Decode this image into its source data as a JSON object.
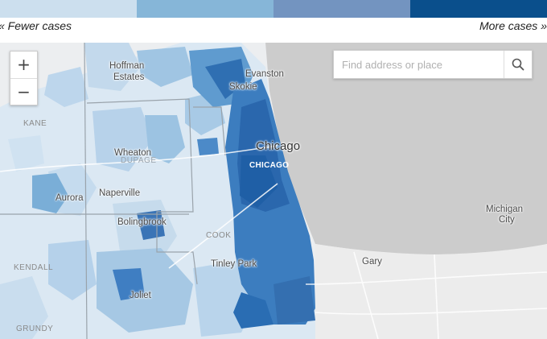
{
  "legend": {
    "colors": [
      "#ccdfee",
      "#86b6d8",
      "#7394c0",
      "#0a4f8c"
    ],
    "fewer_label": "« Fewer cases",
    "more_label": "More cases »"
  },
  "search": {
    "placeholder": "Find address or place"
  },
  "zoom": {
    "in_label": "+",
    "out_label": "−"
  },
  "places": {
    "hoffman": "Hoffman",
    "estates": "Estates",
    "evanston": "Evanston",
    "skokie": "Skokie",
    "kane": "KANE",
    "chicago": "Chicago",
    "chicago_city": "CHICAGO",
    "wheaton": "Wheaton",
    "dupage": "DUPAGE",
    "aurora": "Aurora",
    "naperville": "Naperville",
    "bolingbrook": "Bolingbrook",
    "cook": "COOK",
    "michigan": "Michigan",
    "city": "City",
    "kendall": "KENDALL",
    "tinley_park": "Tinley Park",
    "gary": "Gary",
    "joliet": "Joliet",
    "grundy": "GRUNDY"
  },
  "icons": {
    "search": "search-icon",
    "zoom_in": "plus-icon",
    "zoom_out": "minus-icon"
  }
}
